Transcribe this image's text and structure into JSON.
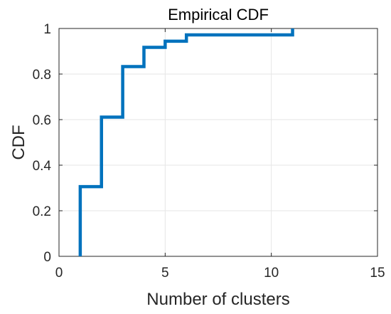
{
  "chart_data": {
    "type": "line",
    "title": "Empirical CDF",
    "xlabel": "Number of clusters",
    "ylabel": "CDF",
    "xlim": [
      0,
      15
    ],
    "ylim": [
      0,
      1
    ],
    "xticks": [
      0,
      5,
      10,
      15
    ],
    "xtick_labels": [
      "0",
      "5",
      "10",
      "15"
    ],
    "yticks": [
      0,
      0.2,
      0.4,
      0.6,
      0.8,
      1
    ],
    "ytick_labels": [
      "0",
      "0.2",
      "0.4",
      "0.6",
      "0.8",
      "1"
    ],
    "grid": true,
    "line_color": "#0072BD",
    "step": true,
    "series": [
      {
        "x": [
          1,
          1,
          2,
          3,
          4,
          5,
          6,
          11
        ],
        "y": [
          0,
          0.306,
          0.611,
          0.833,
          0.917,
          0.944,
          0.972,
          1
        ]
      }
    ]
  }
}
